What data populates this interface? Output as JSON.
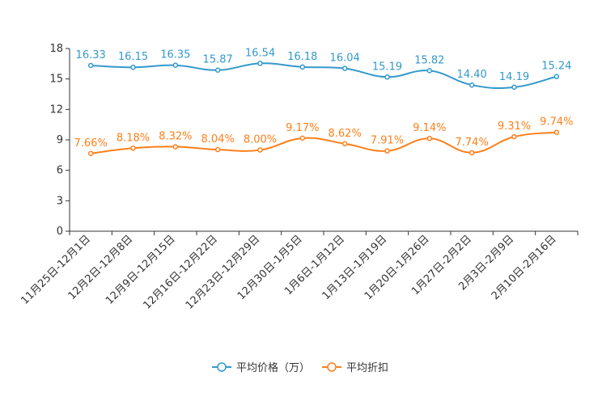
{
  "chart_data": {
    "type": "line",
    "categories": [
      "11月25日-12月1日",
      "12月2日-12月8日",
      "12月9日-12月15日",
      "12月16日-12月22日",
      "12月23日-12月29日",
      "12月30日-1月5日",
      "1月6日-1月12日",
      "1月13日-1月19日",
      "1月20日-1月26日",
      "1月27日-2月2日",
      "2月3日-2月9日",
      "2月10日-2月16日"
    ],
    "series": [
      {
        "name": "平均价格（万）",
        "color": "#3399cc",
        "values": [
          16.33,
          16.15,
          16.35,
          15.87,
          16.54,
          16.18,
          16.04,
          15.19,
          15.82,
          14.4,
          14.19,
          15.24
        ],
        "labels": [
          "16.33",
          "16.15",
          "16.35",
          "15.87",
          "16.54",
          "16.18",
          "16.04",
          "15.19",
          "15.82",
          "14.40",
          "14.19",
          "15.24"
        ]
      },
      {
        "name": "平均折扣",
        "color": "#ff7f1a",
        "values": [
          7.66,
          8.18,
          8.32,
          8.04,
          8.0,
          9.17,
          8.62,
          7.91,
          9.14,
          7.74,
          9.31,
          9.74
        ],
        "labels": [
          "7.66%",
          "8.18%",
          "8.32%",
          "8.04%",
          "8.00%",
          "9.17%",
          "8.62%",
          "7.91%",
          "9.14%",
          "7.74%",
          "9.31%",
          "9.74%"
        ]
      }
    ],
    "ylim": [
      0,
      18
    ],
    "yticks": [
      "0",
      "3",
      "6",
      "9",
      "12",
      "15",
      "18"
    ],
    "yticks_values": [
      0,
      3,
      6,
      9,
      12,
      15,
      18
    ],
    "legend_position": "bottom-center",
    "axis_color": "#333333"
  }
}
